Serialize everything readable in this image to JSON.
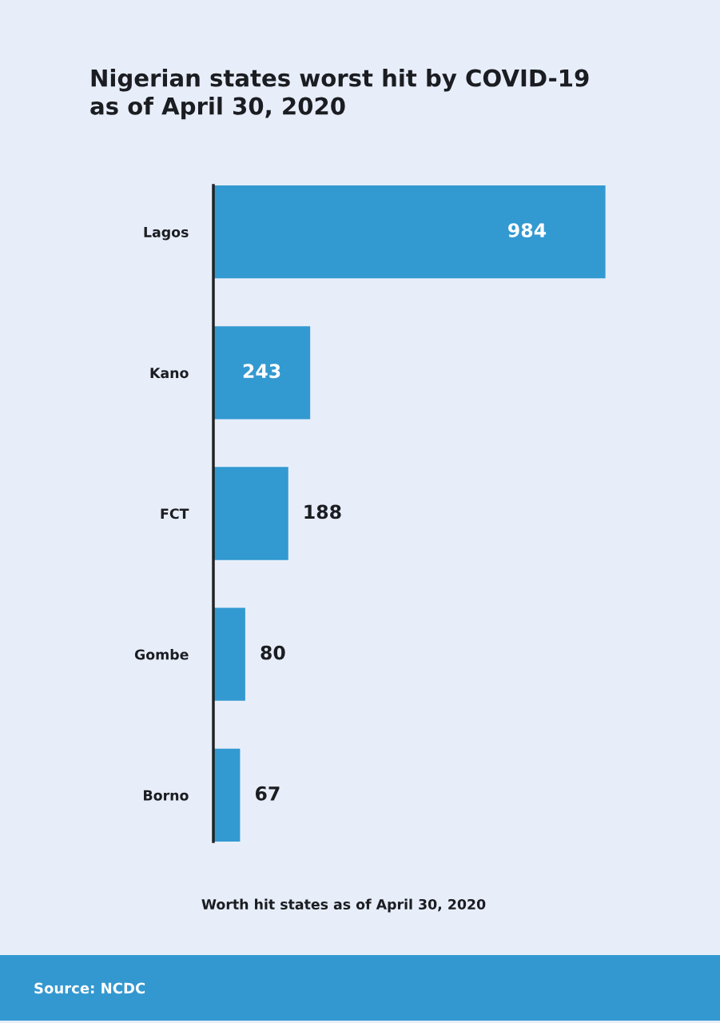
{
  "chart_data": {
    "type": "bar",
    "orientation": "horizontal",
    "title": "Nigerian states worst hit by COVID-19\nas of April 30, 2020",
    "xlabel": "Worth hit states as of April 30, 2020",
    "categories": [
      "Lagos",
      "Kano",
      "FCT",
      "Gombe",
      "Borno"
    ],
    "values": [
      984,
      243,
      188,
      80,
      67
    ],
    "color": "#3399d1",
    "data_labels": true,
    "tick_labels": "y",
    "annotations": [
      "Source: NCDC"
    ]
  }
}
